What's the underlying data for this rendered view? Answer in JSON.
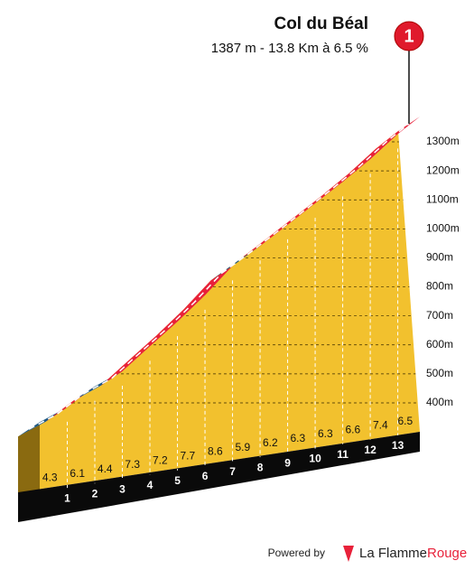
{
  "chart_data": {
    "type": "climb-profile",
    "title": "Col du Béal",
    "subtitle": "1387 m - 13.8 Km à 6.5 %",
    "marker": "1",
    "x": [
      0,
      1,
      2,
      3,
      4,
      5,
      6,
      7,
      8,
      9,
      10,
      11,
      12,
      13,
      13.8
    ],
    "elevations": [
      334,
      385,
      457,
      509,
      595,
      680,
      771,
      872,
      941,
      1014,
      1088,
      1162,
      1240,
      1327,
      1387
    ],
    "gradients": [
      4.3,
      6.1,
      4.4,
      7.3,
      7.2,
      7.7,
      8.6,
      5.9,
      6.2,
      6.3,
      6.3,
      6.6,
      7.4,
      6.5
    ],
    "segment_colors": [
      "#1f5a85",
      "#e8213a",
      "#1f5a85",
      "#e8213a",
      "#e8213a",
      "#e8213a",
      "#e8213a",
      "#1f5a85",
      "#e8213a",
      "#e8213a",
      "#e8213a",
      "#e8213a",
      "#e8213a",
      "#e8213a"
    ],
    "fill_color": "#f2c12e",
    "ylim": [
      400,
      1300
    ],
    "yticks": [
      {
        "value": 400,
        "label": "400m"
      },
      {
        "value": 500,
        "label": "500m"
      },
      {
        "value": 600,
        "label": "600m"
      },
      {
        "value": 700,
        "label": "700m"
      },
      {
        "value": 800,
        "label": "800m"
      },
      {
        "value": 900,
        "label": "900m"
      },
      {
        "value": 1000,
        "label": "1000m"
      },
      {
        "value": 1100,
        "label": "1100m"
      },
      {
        "value": 1200,
        "label": "1200m"
      },
      {
        "value": 1300,
        "label": "1300m"
      }
    ],
    "grid": true
  },
  "footer": {
    "powered_by": "Powered by",
    "brand_a": "La Flamme",
    "brand_b": "Rouge"
  }
}
